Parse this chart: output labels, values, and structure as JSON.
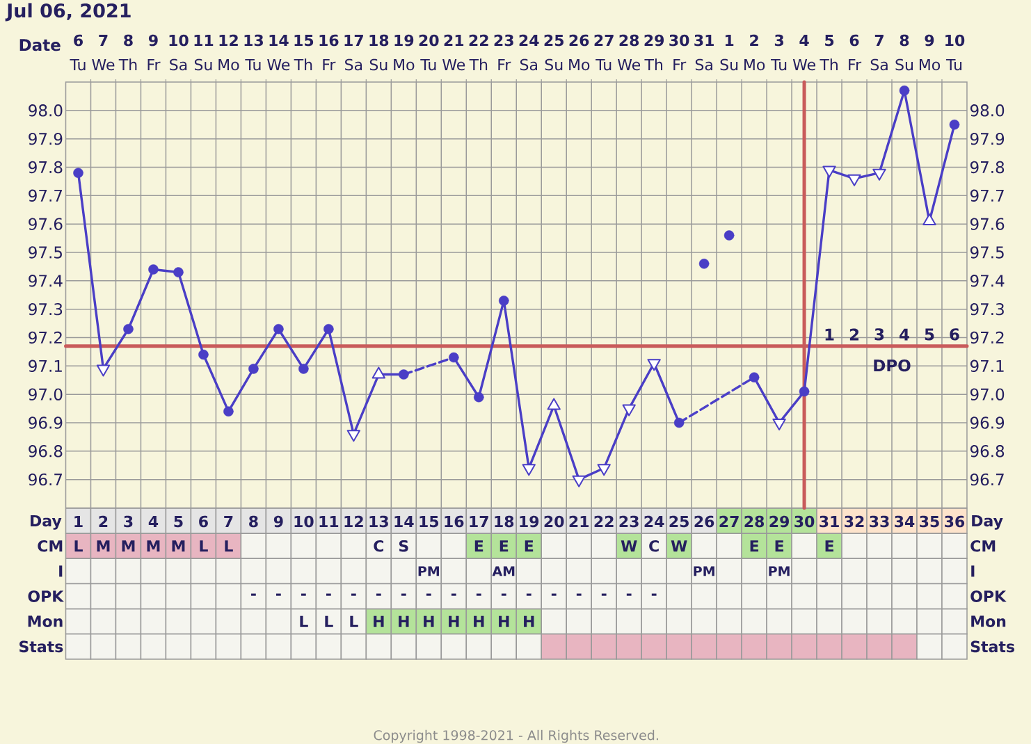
{
  "chart_data": [
    {
      "type": "line",
      "title": "Jul 06, 2021",
      "xlabel": "Day",
      "x2label": "Date",
      "xlim": [
        0.5,
        36.5
      ],
      "xticks": [
        1,
        2,
        3,
        4,
        5,
        6,
        7,
        8,
        9,
        10,
        11,
        12,
        13,
        14,
        15,
        16,
        17,
        18,
        19,
        20,
        21,
        22,
        23,
        24,
        25,
        26,
        27,
        28,
        29,
        30,
        31,
        32,
        33,
        34,
        35,
        36
      ],
      "x2lim": [
        "2021-07-05T12:00",
        "2021-08-10T12:00"
      ],
      "x2ticks": [
        {
          "value": "2021-07-06",
          "label": "6"
        },
        {
          "value": "2021-07-07",
          "label": "7"
        },
        {
          "value": "2021-07-08",
          "label": "8"
        },
        {
          "value": "2021-07-09",
          "label": "9"
        },
        {
          "value": "2021-07-10",
          "label": "10"
        },
        {
          "value": "2021-07-11",
          "label": "11"
        },
        {
          "value": "2021-07-12",
          "label": "12"
        },
        {
          "value": "2021-07-13",
          "label": "13"
        },
        {
          "value": "2021-07-14",
          "label": "14"
        },
        {
          "value": "2021-07-15",
          "label": "15"
        },
        {
          "value": "2021-07-16",
          "label": "16"
        },
        {
          "value": "2021-07-17",
          "label": "17"
        },
        {
          "value": "2021-07-18",
          "label": "18"
        },
        {
          "value": "2021-07-19",
          "label": "19"
        },
        {
          "value": "2021-07-20",
          "label": "20"
        },
        {
          "value": "2021-07-21",
          "label": "21"
        },
        {
          "value": "2021-07-22",
          "label": "22"
        },
        {
          "value": "2021-07-23",
          "label": "23"
        },
        {
          "value": "2021-07-24",
          "label": "24"
        },
        {
          "value": "2021-07-25",
          "label": "25"
        },
        {
          "value": "2021-07-26",
          "label": "26"
        },
        {
          "value": "2021-07-27",
          "label": "27"
        },
        {
          "value": "2021-07-28",
          "label": "28"
        },
        {
          "value": "2021-07-29",
          "label": "29"
        },
        {
          "value": "2021-07-30",
          "label": "30"
        },
        {
          "value": "2021-07-31",
          "label": "31"
        },
        {
          "value": "2021-08-01",
          "label": "1"
        },
        {
          "value": "2021-08-02",
          "label": "2"
        },
        {
          "value": "2021-08-03",
          "label": "3"
        },
        {
          "value": "2021-08-04",
          "label": "4"
        },
        {
          "value": "2021-08-05",
          "label": "5"
        },
        {
          "value": "2021-08-06",
          "label": "6"
        },
        {
          "value": "2021-08-07",
          "label": "7"
        },
        {
          "value": "2021-08-08",
          "label": "8"
        },
        {
          "value": "2021-08-09",
          "label": "9"
        },
        {
          "value": "2021-08-10",
          "label": "10"
        }
      ],
      "ylim": [
        96.6,
        98.1
      ],
      "yticks": [
        96.7,
        96.8,
        96.9,
        {
          "value": 97.0,
          "label": "97.0"
        },
        97.1,
        97.2,
        97.3,
        97.4,
        97.5,
        97.6,
        97.7,
        97.8,
        97.9,
        {
          "value": 98.0,
          "label": "98.0"
        }
      ],
      "y2lim": [
        96.6,
        98.1
      ],
      "y2ticks": [
        96.7,
        96.8,
        96.9,
        {
          "value": 97.0,
          "label": "97.0"
        },
        97.1,
        97.2,
        97.3,
        97.4,
        97.5,
        97.6,
        97.7,
        97.8,
        97.9,
        {
          "value": 98.0,
          "label": "98.0"
        }
      ],
      "grid": true,
      "series": [
        {
          "color": "#4a3ec6",
          "marker": "none",
          "x": [
            1,
            2,
            3,
            4,
            5,
            6,
            7,
            8,
            9,
            10,
            11,
            12,
            13,
            14,
            15,
            16,
            17,
            18,
            19,
            20,
            21,
            22,
            23,
            24,
            25,
            26,
            27,
            28,
            29,
            30,
            31,
            32,
            33,
            34,
            35,
            36
          ],
          "values": [
            97.78,
            97.09,
            97.23,
            97.44,
            97.43,
            97.14,
            96.94,
            97.09,
            97.23,
            97.09,
            97.23,
            96.86,
            97.07,
            97.07,
            null,
            97.13,
            96.99,
            97.33,
            96.74,
            96.96,
            96.7,
            96.74,
            96.95,
            97.11,
            96.9,
            null,
            null,
            97.06,
            96.9,
            97.01,
            97.79,
            97.76,
            97.78,
            98.07,
            97.61,
            97.95
          ]
        },
        {
          "color": "#4b3fc8",
          "marker": "none",
          "line_style": "dashed",
          "x": [
            14,
            16
          ],
          "values": [
            97.07,
            97.13
          ]
        },
        {
          "color": "#4c40c9",
          "marker": "none",
          "line_style": "dashed",
          "x": [
            25,
            28
          ],
          "values": [
            96.9,
            97.06
          ]
        },
        {
          "type": "scatter",
          "color": "#4a3ec6",
          "marker": "circle",
          "x": [
            1,
            3,
            4,
            5,
            6,
            7,
            8,
            9,
            10,
            11,
            14,
            16,
            17,
            18,
            25,
            26,
            27,
            28,
            30,
            34,
            36
          ],
          "values": [
            97.78,
            97.23,
            97.44,
            97.43,
            97.14,
            96.94,
            97.09,
            97.23,
            97.09,
            97.23,
            97.07,
            97.13,
            96.99,
            97.33,
            96.9,
            97.46,
            97.56,
            97.06,
            97.01,
            98.07,
            97.95
          ]
        },
        {
          "type": "scatter",
          "color": "#4a3ec6",
          "marker": "triangle",
          "x": [
            13,
            20,
            35
          ],
          "values": [
            97.07,
            96.96,
            97.61
          ]
        },
        {
          "type": "scatter",
          "color": "#4a3ec6",
          "marker": "triangle-down",
          "x": [
            2,
            12,
            19,
            21,
            22,
            23,
            24,
            29,
            31,
            32,
            33
          ],
          "values": [
            97.09,
            96.86,
            96.74,
            96.7,
            96.74,
            96.95,
            97.11,
            96.9,
            97.79,
            97.76,
            97.78
          ]
        }
      ],
      "ref_lines": [
        {
          "axis": "y",
          "value": 97.17,
          "color": "#c95b5b"
        },
        {
          "axis": "x",
          "value": 30,
          "color": "#c95b5b"
        }
      ],
      "annotations": [
        {
          "text": "1",
          "x": 31,
          "y": 97.17
        },
        {
          "text": "2",
          "x": 32,
          "y": 97.17
        },
        {
          "text": "3",
          "x": 33,
          "y": 97.17
        },
        {
          "text": "4",
          "x": 34,
          "y": 97.17
        },
        {
          "text": "5",
          "x": 35,
          "y": 97.17
        },
        {
          "text": "6",
          "x": 36,
          "y": 97.17
        },
        "DPO"
      ]
    },
    {
      "type": "other",
      "categories": [
        "Tu",
        "We",
        "Th",
        "Fr",
        "Sa",
        "Su",
        "Mo",
        "Tu",
        "We",
        "Th",
        "Fr",
        "Sa",
        "Su",
        "Mo",
        "Tu",
        "We",
        "Th",
        "Fr",
        "Sa",
        "Su",
        "Mo",
        "Tu",
        "We",
        "Th",
        "Fr",
        "Sa",
        "Su",
        "Mo",
        "Tu",
        "We",
        "Th",
        "Fr",
        "Sa",
        "Su",
        "Mo",
        "Tu"
      ]
    },
    {
      "type": "other",
      "y_categories": [
        null,
        "CM",
        "I",
        "OPK",
        "Mon",
        "Stats"
      ],
      "y2_categories": [
        null,
        "CM",
        "I",
        "OPK",
        "Mon",
        "Stats"
      ],
      "cell_labels": [
        [
          null,
          null,
          null,
          null,
          null,
          null,
          null,
          null,
          null,
          null,
          null,
          null,
          null,
          null,
          null,
          null,
          null,
          null,
          null,
          null,
          null,
          null,
          null,
          null,
          null,
          null,
          null,
          null,
          null,
          null,
          null,
          null,
          null,
          null,
          null,
          null
        ],
        [
          "L",
          "M",
          "M",
          "M",
          "M",
          "L",
          "L",
          null,
          null,
          null,
          null,
          null,
          "C",
          "S",
          null,
          null,
          "E",
          "E",
          "E",
          null,
          null,
          null,
          "W",
          "C",
          "W",
          null,
          null,
          "E",
          "E",
          null,
          "E",
          null,
          null,
          null,
          null,
          null
        ],
        [
          null,
          null,
          null,
          null,
          null,
          null,
          null,
          null,
          null,
          null,
          null,
          null,
          null,
          null,
          "PM",
          null,
          null,
          "AM",
          null,
          null,
          null,
          null,
          null,
          null,
          null,
          "PM",
          null,
          null,
          "PM",
          null,
          null,
          null,
          null,
          null,
          null,
          null
        ],
        [
          null,
          null,
          null,
          null,
          null,
          null,
          null,
          "-",
          "-",
          "-",
          "-",
          "-",
          "-",
          "-",
          "-",
          "-",
          "-",
          "-",
          "-",
          "-",
          "-",
          "-",
          "-",
          "-",
          null,
          null,
          null,
          null,
          null,
          null,
          null,
          null,
          null,
          null,
          null,
          null
        ],
        [
          null,
          null,
          null,
          null,
          null,
          null,
          null,
          null,
          null,
          "L",
          "L",
          "L",
          "H",
          "H",
          "H",
          "H",
          "H",
          "H",
          "H",
          null,
          null,
          null,
          null,
          null,
          null,
          null,
          null,
          null,
          null,
          null,
          null,
          null,
          null,
          null,
          null,
          null
        ],
        [
          null,
          null,
          null,
          null,
          null,
          null,
          null,
          null,
          null,
          null,
          null,
          null,
          null,
          null,
          null,
          null,
          null,
          null,
          null,
          null,
          null,
          null,
          null,
          null,
          null,
          null,
          null,
          null,
          null,
          null,
          null,
          null,
          null,
          null,
          null,
          null
        ]
      ],
      "colors": [
        [
          "#e5e5e5",
          "#e5e5e5",
          "#e5e5e5",
          "#e5e5e5",
          "#e5e5e5",
          "#e5e5e5",
          "#e5e5e5",
          "#e5e5e5",
          "#e5e5e5",
          "#e5e5e5",
          "#e5e5e5",
          "#e5e5e5",
          "#e5e5e5",
          "#e5e5e5",
          "#e5e5e5",
          "#e5e5e5",
          "#e5e5e5",
          "#e5e5e5",
          "#e5e5e5",
          "#e5e5e5",
          "#e5e5e5",
          "#e5e5e5",
          "#e5e5e5",
          "#e5e5e5",
          "#e5e5e5",
          "#e5e5e5",
          "#b4e39a",
          "#b4e39a",
          "#b4e39a",
          "#b4e39a",
          "#fde3cb",
          "#fde3cb",
          "#fde3cb",
          "#fde3cb",
          "#fde3cb",
          "#fde3cb"
        ],
        [
          "#e8b5c1",
          "#e8b5c1",
          "#e8b5c1",
          "#e8b5c1",
          "#e8b5c1",
          "#e8b5c1",
          "#e8b5c1",
          "#f5f5ef",
          "#f5f5ef",
          "#f5f5ef",
          "#f5f5ef",
          "#f5f5ef",
          "#f5f5ef",
          "#f5f5ef",
          "#f5f5ef",
          "#f5f5ef",
          "#b4e39a",
          "#b4e39a",
          "#b4e39a",
          "#f5f5ef",
          "#f5f5ef",
          "#f5f5ef",
          "#b4e39a",
          "#f5f5ef",
          "#b4e39a",
          "#f5f5ef",
          "#f5f5ef",
          "#b4e39a",
          "#b4e39a",
          "#f5f5ef",
          "#b4e39a",
          "#f5f5ef",
          "#f5f5ef",
          "#f5f5ef",
          "#f5f5ef",
          "#f5f5ef"
        ],
        [
          "#f5f5ef",
          "#f5f5ef",
          "#f5f5ef",
          "#f5f5ef",
          "#f5f5ef",
          "#f5f5ef",
          "#f5f5ef",
          "#f5f5ef",
          "#f5f5ef",
          "#f5f5ef",
          "#f5f5ef",
          "#f5f5ef",
          "#f5f5ef",
          "#f5f5ef",
          "#f5f5ef",
          "#f5f5ef",
          "#f5f5ef",
          "#f5f5ef",
          "#f5f5ef",
          "#f5f5ef",
          "#f5f5ef",
          "#f5f5ef",
          "#f5f5ef",
          "#f5f5ef",
          "#f5f5ef",
          "#f5f5ef",
          "#f5f5ef",
          "#f5f5ef",
          "#f5f5ef",
          "#f5f5ef",
          "#f5f5ef",
          "#f5f5ef",
          "#f5f5ef",
          "#f5f5ef",
          "#f5f5ef",
          "#f5f5ef"
        ],
        [
          "#f5f5ef",
          "#f5f5ef",
          "#f5f5ef",
          "#f5f5ef",
          "#f5f5ef",
          "#f5f5ef",
          "#f5f5ef",
          "#f5f5ef",
          "#f5f5ef",
          "#f5f5ef",
          "#f5f5ef",
          "#f5f5ef",
          "#f5f5ef",
          "#f5f5ef",
          "#f5f5ef",
          "#f5f5ef",
          "#f5f5ef",
          "#f5f5ef",
          "#f5f5ef",
          "#f5f5ef",
          "#f5f5ef",
          "#f5f5ef",
          "#f5f5ef",
          "#f5f5ef",
          "#f5f5ef",
          "#f5f5ef",
          "#f5f5ef",
          "#f5f5ef",
          "#f5f5ef",
          "#f5f5ef",
          "#f5f5ef",
          "#f5f5ef",
          "#f5f5ef",
          "#f5f5ef",
          "#f5f5ef",
          "#f5f5ef"
        ],
        [
          "#f5f5ef",
          "#f5f5ef",
          "#f5f5ef",
          "#f5f5ef",
          "#f5f5ef",
          "#f5f5ef",
          "#f5f5ef",
          "#f5f5ef",
          "#f5f5ef",
          "#f5f5ef",
          "#f5f5ef",
          "#f5f5ef",
          "#b4e39a",
          "#b4e39a",
          "#b4e39a",
          "#b4e39a",
          "#b4e39a",
          "#b4e39a",
          "#b4e39a",
          "#f5f5ef",
          "#f5f5ef",
          "#f5f5ef",
          "#f5f5ef",
          "#f5f5ef",
          "#f5f5ef",
          "#f5f5ef",
          "#f5f5ef",
          "#f5f5ef",
          "#f5f5ef",
          "#f5f5ef",
          "#f5f5ef",
          "#f5f5ef",
          "#f5f5ef",
          "#f5f5ef",
          "#f5f5ef",
          "#f5f5ef"
        ],
        [
          "#f5f5ef",
          "#f5f5ef",
          "#f5f5ef",
          "#f5f5ef",
          "#f5f5ef",
          "#f5f5ef",
          "#f5f5ef",
          "#f5f5ef",
          "#f5f5ef",
          "#f5f5ef",
          "#f5f5ef",
          "#f5f5ef",
          "#f5f5ef",
          "#f5f5ef",
          "#f5f5ef",
          "#f5f5ef",
          "#f5f5ef",
          "#f5f5ef",
          "#f5f5ef",
          "#e8b5c1",
          "#e8b5c1",
          "#e8b5c1",
          "#e8b5c1",
          "#e8b5c1",
          "#e8b5c1",
          "#e8b5c1",
          "#e8b5c1",
          "#e8b5c1",
          "#e8b5c1",
          "#e8b5c1",
          "#e8b5c1",
          "#e8b5c1",
          "#e8b5c1",
          "#e8b5c1",
          "#f5f5ef",
          "#f5f5ef"
        ]
      ],
      "annotations": [
        "Copyright 1998-2021 - All Rights Reserved."
      ]
    }
  ]
}
